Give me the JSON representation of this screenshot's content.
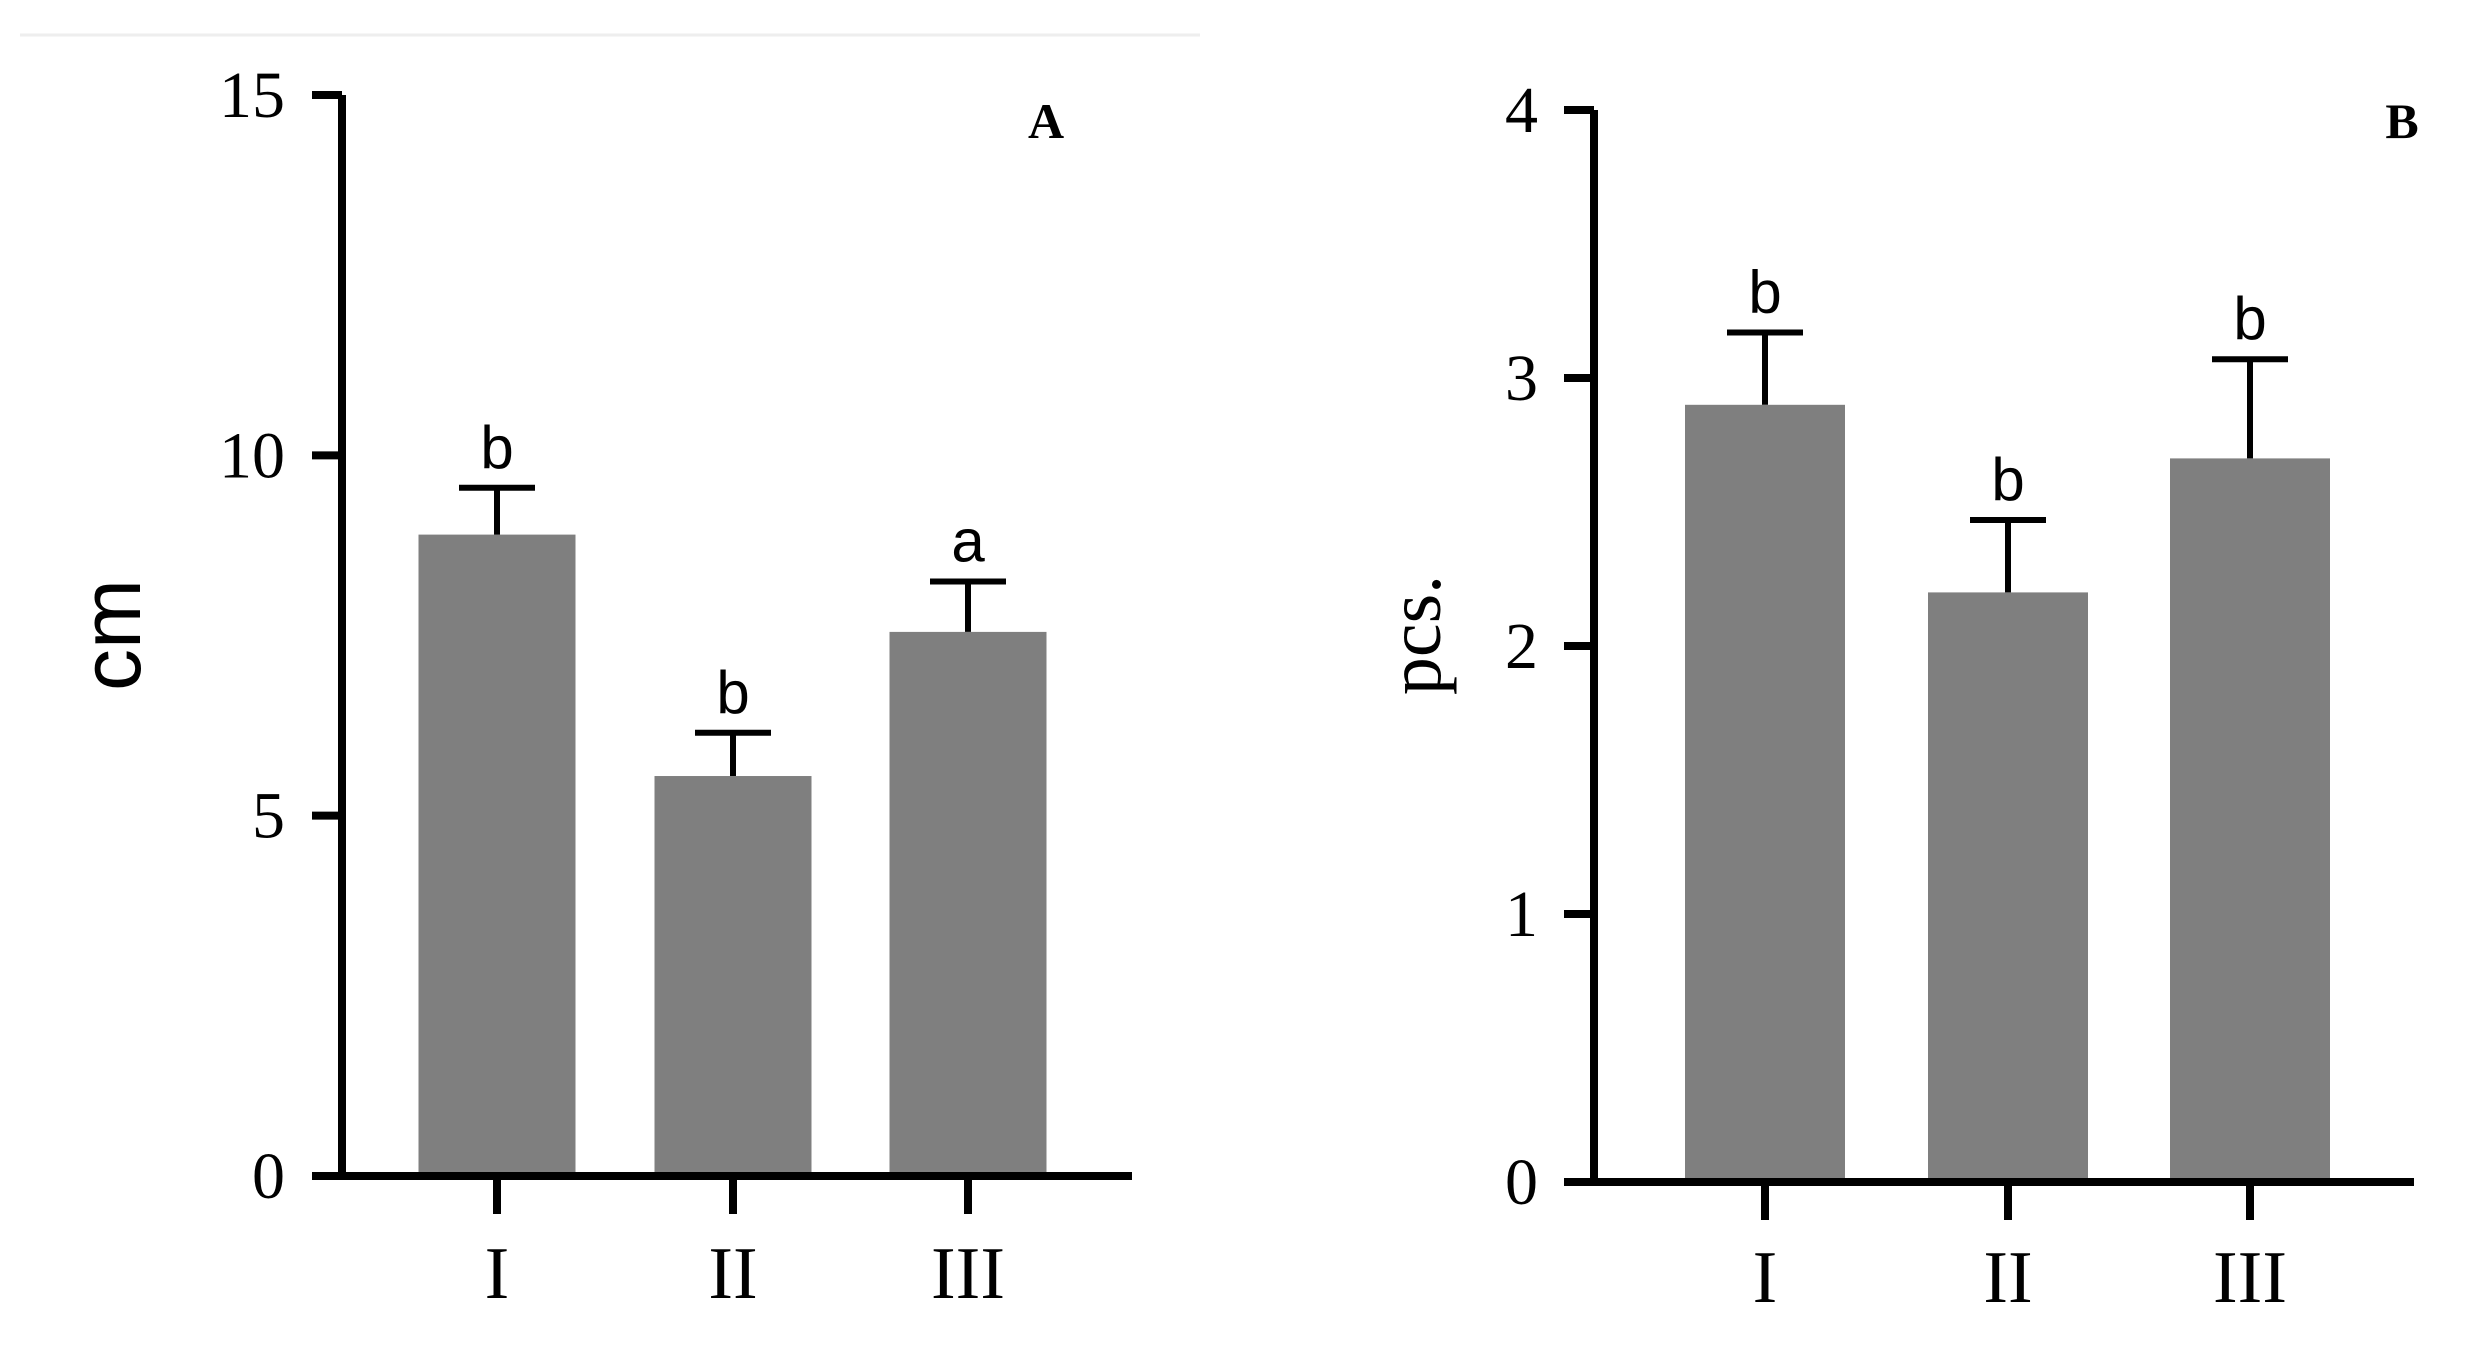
{
  "chart_data": [
    {
      "panel": "A",
      "type": "bar",
      "categories": [
        "I",
        "II",
        "III"
      ],
      "values": [
        8.9,
        5.55,
        7.55
      ],
      "errors": [
        0.65,
        0.6,
        0.7
      ],
      "significance": [
        "b",
        "b",
        "a"
      ],
      "xlabel": "",
      "ylabel": "cm",
      "ylim": [
        0,
        15
      ],
      "yticks": [
        0,
        5,
        10,
        15
      ],
      "grid": false,
      "bar_color": "#7f7f7f"
    },
    {
      "panel": "B",
      "type": "bar",
      "categories": [
        "I",
        "II",
        "III"
      ],
      "values": [
        2.9,
        2.2,
        2.7
      ],
      "errors": [
        0.27,
        0.27,
        0.37
      ],
      "significance": [
        "b",
        "b",
        "b"
      ],
      "xlabel": "",
      "ylabel": "pcs.",
      "ylim": [
        0,
        4
      ],
      "yticks": [
        0,
        1,
        2,
        3,
        4
      ],
      "grid": false,
      "bar_color": "#7f7f7f"
    }
  ]
}
